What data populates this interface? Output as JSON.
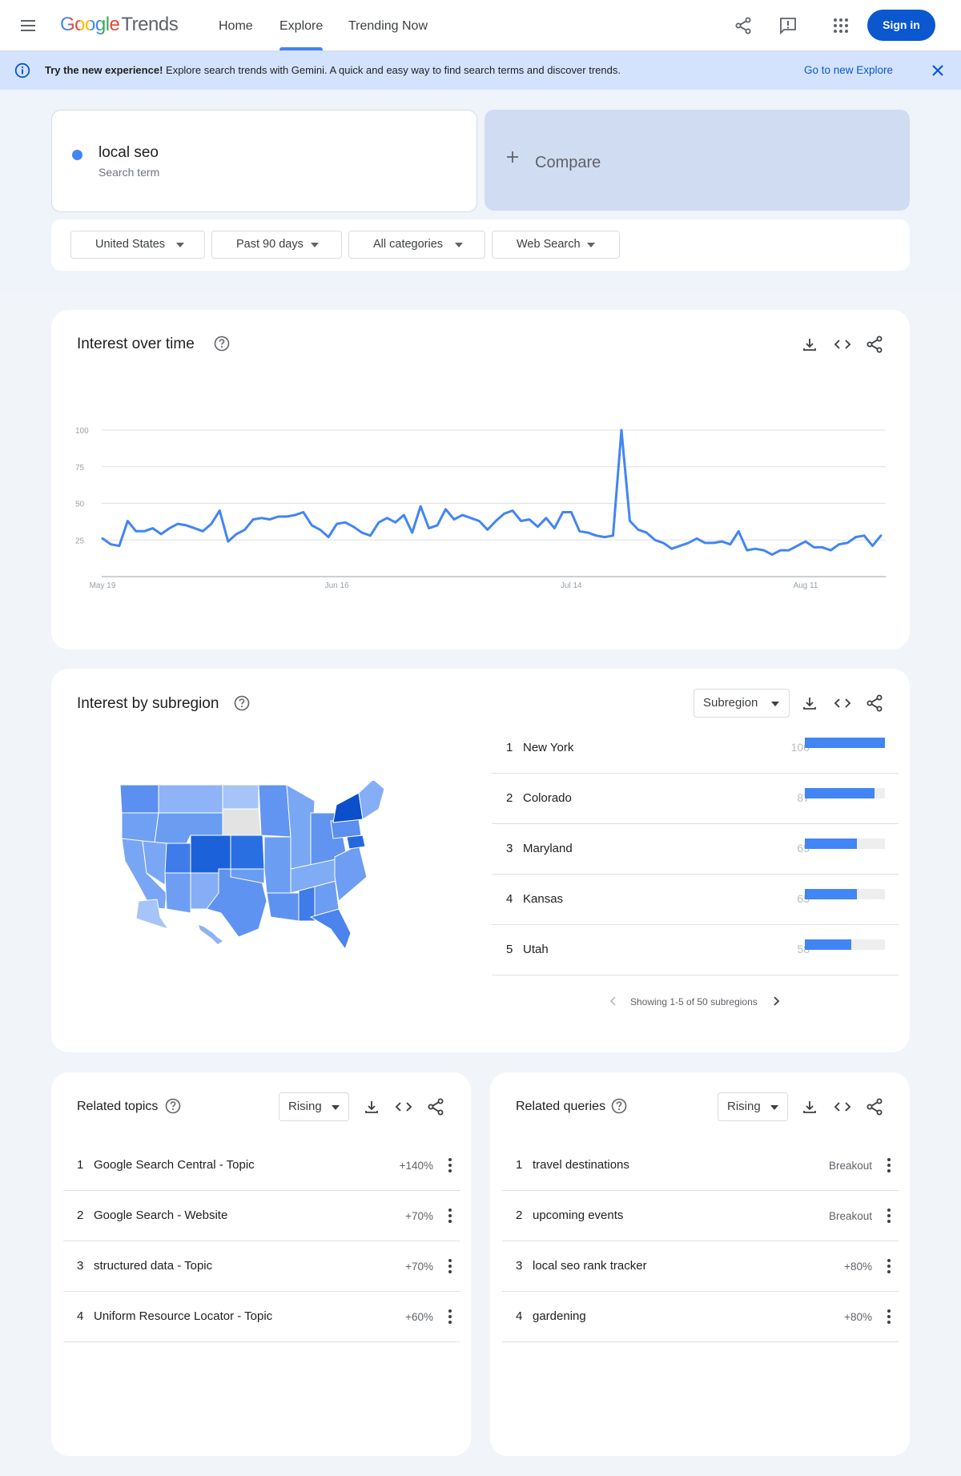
{
  "header": {
    "logo_google": "Google",
    "logo_trends": "Trends",
    "nav": [
      "Home",
      "Explore",
      "Trending Now"
    ],
    "active_nav": "Explore",
    "signin_label": "Sign in"
  },
  "banner": {
    "bold": "Try the new experience!",
    "text": " Explore search trends with Gemini. A quick and easy way to find search terms and discover trends.",
    "link": "Go to new Explore"
  },
  "term": {
    "name": "local seo",
    "sub": "Search term",
    "color": "#4285f4"
  },
  "compare_label": "Compare",
  "filters": {
    "country": "United States",
    "period": "Past 90 days",
    "category": "All categories",
    "property": "Web Search"
  },
  "interest_over_time": {
    "title": "Interest over time",
    "chart_data": {
      "type": "line",
      "ylim": [
        0,
        100
      ],
      "yticks": [
        "100",
        "75",
        "50",
        "25"
      ],
      "xticks": [
        "May 19",
        "Jun 16",
        "Jul 14",
        "Aug 11"
      ],
      "xlabel": "",
      "ylabel": "",
      "grid": true,
      "series": [
        {
          "color": "#4285f4",
          "values": [
            26,
            22,
            21,
            38,
            31,
            31,
            33,
            29,
            33,
            36,
            35,
            33,
            31,
            36,
            45,
            24,
            29,
            32,
            39,
            40,
            39,
            41,
            41,
            42,
            44,
            35,
            32,
            27,
            36,
            37,
            34,
            30,
            28,
            37,
            40,
            37,
            42,
            30,
            48,
            33,
            35,
            46,
            39,
            42,
            40,
            38,
            32,
            38,
            43,
            45,
            38,
            39,
            34,
            40,
            33,
            44,
            44,
            31,
            30,
            28,
            27,
            28,
            100,
            38,
            32,
            30,
            25,
            23,
            19,
            21,
            23,
            26,
            23,
            23,
            24,
            22,
            31,
            18,
            19,
            18,
            15,
            18,
            18,
            21,
            24,
            20,
            20,
            18,
            22,
            23,
            27,
            28,
            21,
            28
          ]
        }
      ]
    }
  },
  "subregion": {
    "title": "Interest by subregion",
    "dropdown": "Subregion",
    "rows": [
      {
        "rank": "1",
        "name": "New York",
        "value": 100
      },
      {
        "rank": "2",
        "name": "Colorado",
        "value": 87
      },
      {
        "rank": "3",
        "name": "Maryland",
        "value": 65
      },
      {
        "rank": "4",
        "name": "Kansas",
        "value": 65
      },
      {
        "rank": "5",
        "name": "Utah",
        "value": 58
      }
    ],
    "pager": "Showing 1-5 of 50 subregions"
  },
  "related_topics": {
    "title": "Related topics",
    "dropdown": "Rising",
    "rows": [
      {
        "rank": "1",
        "name": "Google Search Central - Topic",
        "value": "+140%"
      },
      {
        "rank": "2",
        "name": "Google Search - Website",
        "value": "+70%"
      },
      {
        "rank": "3",
        "name": "structured data - Topic",
        "value": "+70%"
      },
      {
        "rank": "4",
        "name": "Uniform Resource Locator - Topic",
        "value": "+60%"
      }
    ]
  },
  "related_queries": {
    "title": "Related queries",
    "dropdown": "Rising",
    "rows": [
      {
        "rank": "1",
        "name": "travel destinations",
        "value": "Breakout"
      },
      {
        "rank": "2",
        "name": "upcoming events",
        "value": "Breakout"
      },
      {
        "rank": "3",
        "name": "local seo rank tracker",
        "value": "+80%"
      },
      {
        "rank": "4",
        "name": "gardening",
        "value": "+80%"
      }
    ]
  }
}
